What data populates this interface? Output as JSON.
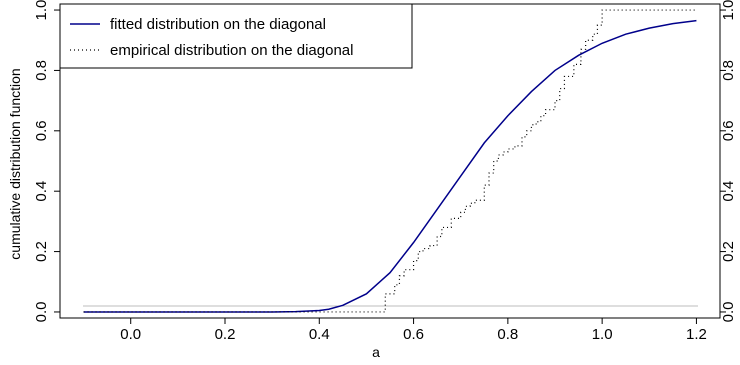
{
  "chart_data": {
    "type": "line",
    "xlabel": "a",
    "ylabel": "cumulative distribution function",
    "xlim": [
      -0.15,
      1.25
    ],
    "ylim": [
      -0.02,
      1.02
    ],
    "x_ticks": [
      "0.0",
      "0.2",
      "0.4",
      "0.6",
      "0.8",
      "1.0",
      "1.2"
    ],
    "y_ticks": [
      "0.0",
      "0.2",
      "0.4",
      "0.6",
      "0.8",
      "1.0"
    ],
    "grid": false,
    "legend_position": "top-left",
    "series": [
      {
        "name": "fitted distribution on the diagonal",
        "style": "solid",
        "color": "#00008b",
        "x": [
          -0.1,
          0.0,
          0.1,
          0.2,
          0.3,
          0.35,
          0.4,
          0.42,
          0.45,
          0.5,
          0.55,
          0.6,
          0.65,
          0.7,
          0.75,
          0.8,
          0.85,
          0.9,
          0.95,
          1.0,
          1.05,
          1.1,
          1.15,
          1.2
        ],
        "y": [
          0.0,
          0.0,
          0.0,
          0.0,
          0.0,
          0.001,
          0.005,
          0.009,
          0.022,
          0.06,
          0.13,
          0.23,
          0.34,
          0.45,
          0.56,
          0.65,
          0.73,
          0.8,
          0.85,
          0.89,
          0.92,
          0.94,
          0.955,
          0.965
        ]
      },
      {
        "name": "empirical distribution on the diagonal",
        "style": "step-dotted",
        "color": "#000000",
        "x": [
          -0.1,
          0.52,
          0.54,
          0.56,
          0.57,
          0.58,
          0.6,
          0.61,
          0.62,
          0.635,
          0.65,
          0.66,
          0.68,
          0.7,
          0.71,
          0.72,
          0.73,
          0.75,
          0.76,
          0.77,
          0.78,
          0.79,
          0.8,
          0.815,
          0.83,
          0.84,
          0.85,
          0.86,
          0.87,
          0.88,
          0.9,
          0.91,
          0.92,
          0.94,
          0.955,
          0.965,
          0.98,
          0.99,
          1.0,
          1.2
        ],
        "y": [
          0.0,
          0.0,
          0.06,
          0.09,
          0.12,
          0.14,
          0.17,
          0.2,
          0.21,
          0.22,
          0.25,
          0.28,
          0.31,
          0.33,
          0.35,
          0.36,
          0.37,
          0.42,
          0.46,
          0.5,
          0.52,
          0.53,
          0.54,
          0.55,
          0.58,
          0.6,
          0.62,
          0.63,
          0.65,
          0.67,
          0.7,
          0.74,
          0.78,
          0.82,
          0.87,
          0.9,
          0.92,
          0.95,
          1.0,
          1.0
        ]
      }
    ]
  }
}
